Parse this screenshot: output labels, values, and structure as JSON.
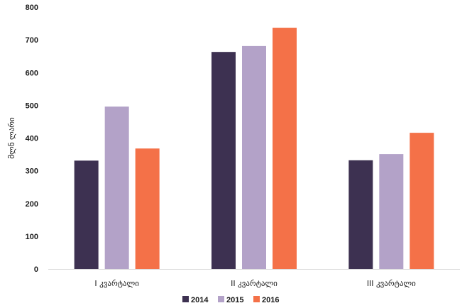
{
  "chart_data": {
    "type": "bar",
    "title": "",
    "xlabel": "",
    "ylabel": "მლნ ლარი",
    "categories": [
      "I კვარტალი",
      "II კვარტალი",
      "III კვარტალი"
    ],
    "series": [
      {
        "name": "2014",
        "color": "#3d3151",
        "values": [
          331,
          663,
          332
        ]
      },
      {
        "name": "2015",
        "color": "#b3a2c8",
        "values": [
          496,
          681,
          351
        ]
      },
      {
        "name": "2016",
        "color": "#f47148",
        "values": [
          368,
          737,
          416
        ]
      }
    ],
    "ylim": [
      0,
      800
    ],
    "yticks": [
      0,
      100,
      200,
      300,
      400,
      500,
      600,
      700,
      800
    ],
    "grid": false,
    "legend": "bottom"
  }
}
